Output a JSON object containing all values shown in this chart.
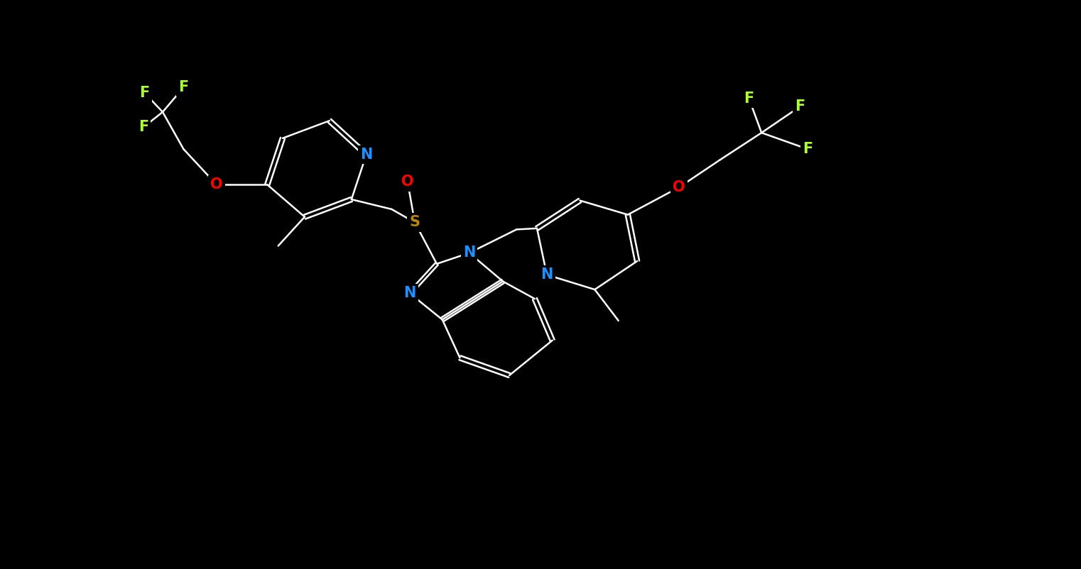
{
  "bg_color": "#000000",
  "bond_color": "#ffffff",
  "atom_colors": {
    "N": "#1e90ff",
    "O": "#ff0000",
    "S": "#b8860b",
    "F": "#adff2f",
    "C": "#ffffff"
  },
  "lw": 1.8,
  "fontsize": 15
}
